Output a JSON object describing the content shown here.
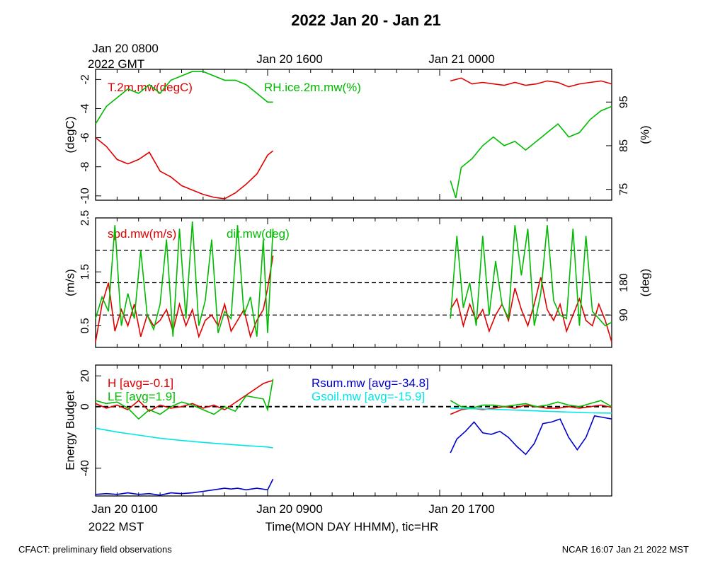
{
  "title": "2022 Jan 20 - Jan 21",
  "top_axis": {
    "labels": [
      "Jan 20 0800",
      "Jan 20 1600",
      "Jan 21 0000"
    ],
    "sublabel": "2022 GMT"
  },
  "bottom_axis": {
    "labels": [
      "Jan 20 0100",
      "Jan 20 0900",
      "Jan 20 1700"
    ],
    "sublabel": "2022 MST",
    "xlabel": "Time(MON DAY HHMM), tic=HR"
  },
  "footer": {
    "left": "CFACT: preliminary field observations",
    "right": "NCAR 16:07 Jan 21 2022 MST"
  },
  "colors": {
    "red": "#e00000",
    "green": "#00bb00",
    "blue": "#0000cc",
    "cyan": "#00e5e5"
  },
  "chart_data": [
    {
      "type": "line",
      "panel": "temperature-rh",
      "ylabel": "(degC)",
      "y2label": "(%)",
      "ylim": [
        -10.3,
        -1.3
      ],
      "y2lim": [
        72.5,
        102.5
      ],
      "yticks": [
        -10,
        -8,
        -6,
        -4,
        -2
      ],
      "y2ticks": [
        75,
        85,
        95
      ],
      "series": [
        {
          "name": "T.2m.mw(degC)",
          "color": "#e00000",
          "axis": "left",
          "x": [
            0.0,
            0.5,
            1.0,
            1.5,
            2.0,
            2.5,
            3.0,
            3.5,
            4.0,
            4.5,
            5.0,
            5.5,
            6.0,
            6.5,
            7.0,
            7.5,
            8.0,
            8.25,
            16.5,
            17.0,
            17.5,
            18.0,
            18.5,
            19.0,
            19.5,
            20.0,
            20.5,
            21.0,
            21.5,
            22.0,
            22.5,
            23.0,
            23.5,
            24.0
          ],
          "y": [
            -6.0,
            -6.6,
            -7.5,
            -7.8,
            -7.5,
            -7.0,
            -8.3,
            -8.7,
            -9.3,
            -9.6,
            -9.9,
            -10.1,
            -10.2,
            -9.8,
            -9.2,
            -8.5,
            -7.2,
            -6.9,
            -2.1,
            -1.9,
            -2.3,
            -2.2,
            -2.3,
            -2.4,
            -2.2,
            -2.4,
            -2.3,
            -2.1,
            -2.2,
            -2.5,
            -2.3,
            -2.2,
            -2.1,
            -2.3
          ]
        },
        {
          "name": "RH.ice.2m.mw(%)",
          "color": "#00bb00",
          "axis": "right",
          "x": [
            0.0,
            0.5,
            1.0,
            1.5,
            2.0,
            2.5,
            3.0,
            3.5,
            4.0,
            4.5,
            5.0,
            5.5,
            6.0,
            6.5,
            7.0,
            7.5,
            8.0,
            8.25,
            16.5,
            16.75,
            17.0,
            17.5,
            18.0,
            18.5,
            19.0,
            19.5,
            20.0,
            20.5,
            21.0,
            21.5,
            22.0,
            22.5,
            23.0,
            23.5,
            24.0
          ],
          "y": [
            90,
            94,
            96,
            98,
            97,
            99,
            97,
            100,
            101,
            102,
            102,
            101,
            100,
            100,
            99,
            97,
            95,
            95,
            77,
            73,
            80,
            82,
            85,
            87,
            85,
            86,
            84,
            86,
            88,
            90,
            87,
            88,
            91,
            93,
            94
          ]
        }
      ]
    },
    {
      "type": "line",
      "panel": "wind",
      "ylabel": "(m/s)",
      "y2label": "(deg)",
      "ylim": [
        0.1,
        2.5
      ],
      "y2lim": [
        0,
        360
      ],
      "yticks": [
        0.5,
        1.5,
        2.5
      ],
      "y2ticks": [
        90,
        180
      ],
      "y2_reference_lines": [
        90,
        180,
        270
      ],
      "series": [
        {
          "name": "spd.mw(m/s)",
          "color": "#e00000",
          "axis": "left",
          "x": [
            0.0,
            0.3,
            0.6,
            0.9,
            1.2,
            1.5,
            1.8,
            2.1,
            2.4,
            2.7,
            3.0,
            3.3,
            3.6,
            3.9,
            4.2,
            4.5,
            4.8,
            5.1,
            5.4,
            5.7,
            6.0,
            6.3,
            6.6,
            6.9,
            7.2,
            7.5,
            7.8,
            8.0,
            8.25,
            16.5,
            16.8,
            17.1,
            17.4,
            17.7,
            18.0,
            18.3,
            18.6,
            18.9,
            19.2,
            19.5,
            19.8,
            20.1,
            20.4,
            20.7,
            21.0,
            21.3,
            21.6,
            21.9,
            22.2,
            22.5,
            22.8,
            23.1,
            23.4,
            23.7,
            24.0
          ],
          "y": [
            0.2,
            0.9,
            1.3,
            0.4,
            0.8,
            0.5,
            0.9,
            0.3,
            0.7,
            0.5,
            0.6,
            0.8,
            0.4,
            0.9,
            0.5,
            0.8,
            0.3,
            0.6,
            0.7,
            0.5,
            0.9,
            0.4,
            0.6,
            0.8,
            0.3,
            0.6,
            0.8,
            1.2,
            1.8,
            0.8,
            1.0,
            0.5,
            0.9,
            0.6,
            0.8,
            0.4,
            0.7,
            0.9,
            0.6,
            1.2,
            0.8,
            0.5,
            0.9,
            1.4,
            0.8,
            0.6,
            0.9,
            0.4,
            0.7,
            1.0,
            0.6,
            0.5,
            0.9,
            0.6,
            0.2
          ]
        },
        {
          "name": "dir.mw(deg)",
          "color": "#00bb00",
          "axis": "right",
          "x": [
            0.0,
            0.3,
            0.6,
            0.9,
            1.2,
            1.5,
            1.8,
            2.1,
            2.4,
            2.7,
            3.0,
            3.3,
            3.6,
            3.9,
            4.2,
            4.5,
            4.8,
            5.1,
            5.4,
            5.7,
            6.0,
            6.3,
            6.6,
            6.9,
            7.2,
            7.5,
            7.8,
            8.0,
            8.25,
            16.5,
            16.8,
            17.1,
            17.4,
            17.7,
            18.0,
            18.3,
            18.6,
            18.9,
            19.2,
            19.5,
            19.8,
            20.1,
            20.4,
            20.7,
            21.0,
            21.3,
            21.6,
            21.9,
            22.2,
            22.5,
            22.8,
            23.1,
            23.4,
            23.7,
            24.0
          ],
          "y": [
            80,
            140,
            100,
            340,
            60,
            150,
            80,
            270,
            90,
            50,
            120,
            300,
            30,
            330,
            80,
            350,
            60,
            130,
            300,
            40,
            100,
            80,
            340,
            90,
            140,
            30,
            300,
            40,
            330,
            80,
            310,
            110,
            180,
            60,
            310,
            90,
            240,
            120,
            80,
            340,
            200,
            330,
            60,
            150,
            340,
            130,
            90,
            80,
            330,
            60,
            310,
            100,
            80,
            60,
            70
          ]
        }
      ]
    },
    {
      "type": "line",
      "panel": "energy-budget",
      "ylabel": "Energy Budget",
      "ylim": [
        -58,
        27
      ],
      "yticks": [
        -40,
        0,
        20
      ],
      "reference_line": 0,
      "series": [
        {
          "name": "H [avg=-0.1]",
          "color": "#e00000",
          "x": [
            0.0,
            0.5,
            1.0,
            1.5,
            2.0,
            2.5,
            3.0,
            3.5,
            4.0,
            4.5,
            5.0,
            5.5,
            6.0,
            7.8,
            8.0,
            8.25,
            16.5,
            17.0,
            17.5,
            18.0,
            18.5,
            19.0,
            19.5,
            20.0,
            20.5,
            21.0,
            21.5,
            22.0,
            22.5,
            23.0,
            23.5,
            24.0
          ],
          "y": [
            2,
            -1,
            1,
            -2,
            4,
            -3,
            1,
            -1,
            0,
            2,
            -1,
            1,
            -2,
            15,
            16,
            17,
            -5,
            -2,
            -1,
            -2,
            -1,
            0,
            -1,
            1,
            0,
            -1,
            -1,
            0,
            -1,
            0,
            1,
            -0.5
          ]
        },
        {
          "name": "LE [avg=1.9]",
          "color": "#00bb00",
          "x": [
            0.0,
            0.5,
            1.0,
            1.5,
            2.0,
            2.5,
            3.0,
            3.5,
            4.0,
            4.5,
            5.0,
            5.5,
            6.0,
            6.5,
            7.0,
            7.8,
            8.0,
            8.25,
            16.5,
            17.0,
            17.5,
            18.0,
            18.5,
            19.0,
            19.5,
            20.0,
            20.5,
            21.0,
            21.5,
            22.0,
            22.5,
            23.0,
            23.5,
            24.0
          ],
          "y": [
            4,
            2,
            3,
            -1,
            -8,
            -2,
            -5,
            0,
            3,
            1,
            -2,
            -5,
            0,
            -3,
            7,
            5,
            -2,
            18,
            4,
            0,
            -1,
            1,
            1,
            0,
            1,
            2,
            0,
            1,
            3,
            1,
            0,
            2,
            4,
            0
          ]
        },
        {
          "name": "Rsum.mw [avg=-34.8]",
          "color": "#0000cc",
          "x": [
            0.0,
            0.5,
            1.0,
            1.5,
            2.0,
            2.5,
            3.0,
            3.5,
            4.0,
            4.5,
            5.0,
            5.5,
            6.0,
            6.3,
            6.6,
            7.0,
            7.5,
            8.0,
            8.25,
            16.5,
            16.8,
            17.2,
            17.6,
            18.0,
            18.4,
            18.8,
            19.2,
            19.6,
            20.0,
            20.4,
            20.8,
            21.2,
            21.6,
            22.0,
            22.4,
            22.8,
            23.2,
            23.6,
            24.0
          ],
          "y": [
            -57,
            -56.5,
            -57,
            -56,
            -57,
            -56.5,
            -57.5,
            -56,
            -56.5,
            -56,
            -55,
            -54,
            -53,
            -53.5,
            -53,
            -54,
            -53,
            -54,
            -47,
            -30,
            -21,
            -16,
            -10,
            -17,
            -18,
            -16,
            -20,
            -26,
            -31,
            -24,
            -11,
            -10,
            -8,
            -20,
            -28,
            -20,
            -6,
            -7,
            -8
          ]
        },
        {
          "name": "Gsoil.mw [avg=-15.9]",
          "color": "#00e5e5",
          "x": [
            0.0,
            1.0,
            2.0,
            3.0,
            4.0,
            5.0,
            6.0,
            7.0,
            8.0,
            8.25,
            16.5,
            17.0,
            18.0,
            19.0,
            20.0,
            21.0,
            22.0,
            23.0,
            24.0
          ],
          "y": [
            -14,
            -16.5,
            -18.5,
            -20.5,
            -22,
            -23.2,
            -24.3,
            -25.3,
            -26.2,
            -26.8,
            -1,
            -1.2,
            -1.5,
            -2,
            -2.5,
            -3,
            -3.5,
            -4,
            -4.2
          ]
        }
      ]
    }
  ]
}
